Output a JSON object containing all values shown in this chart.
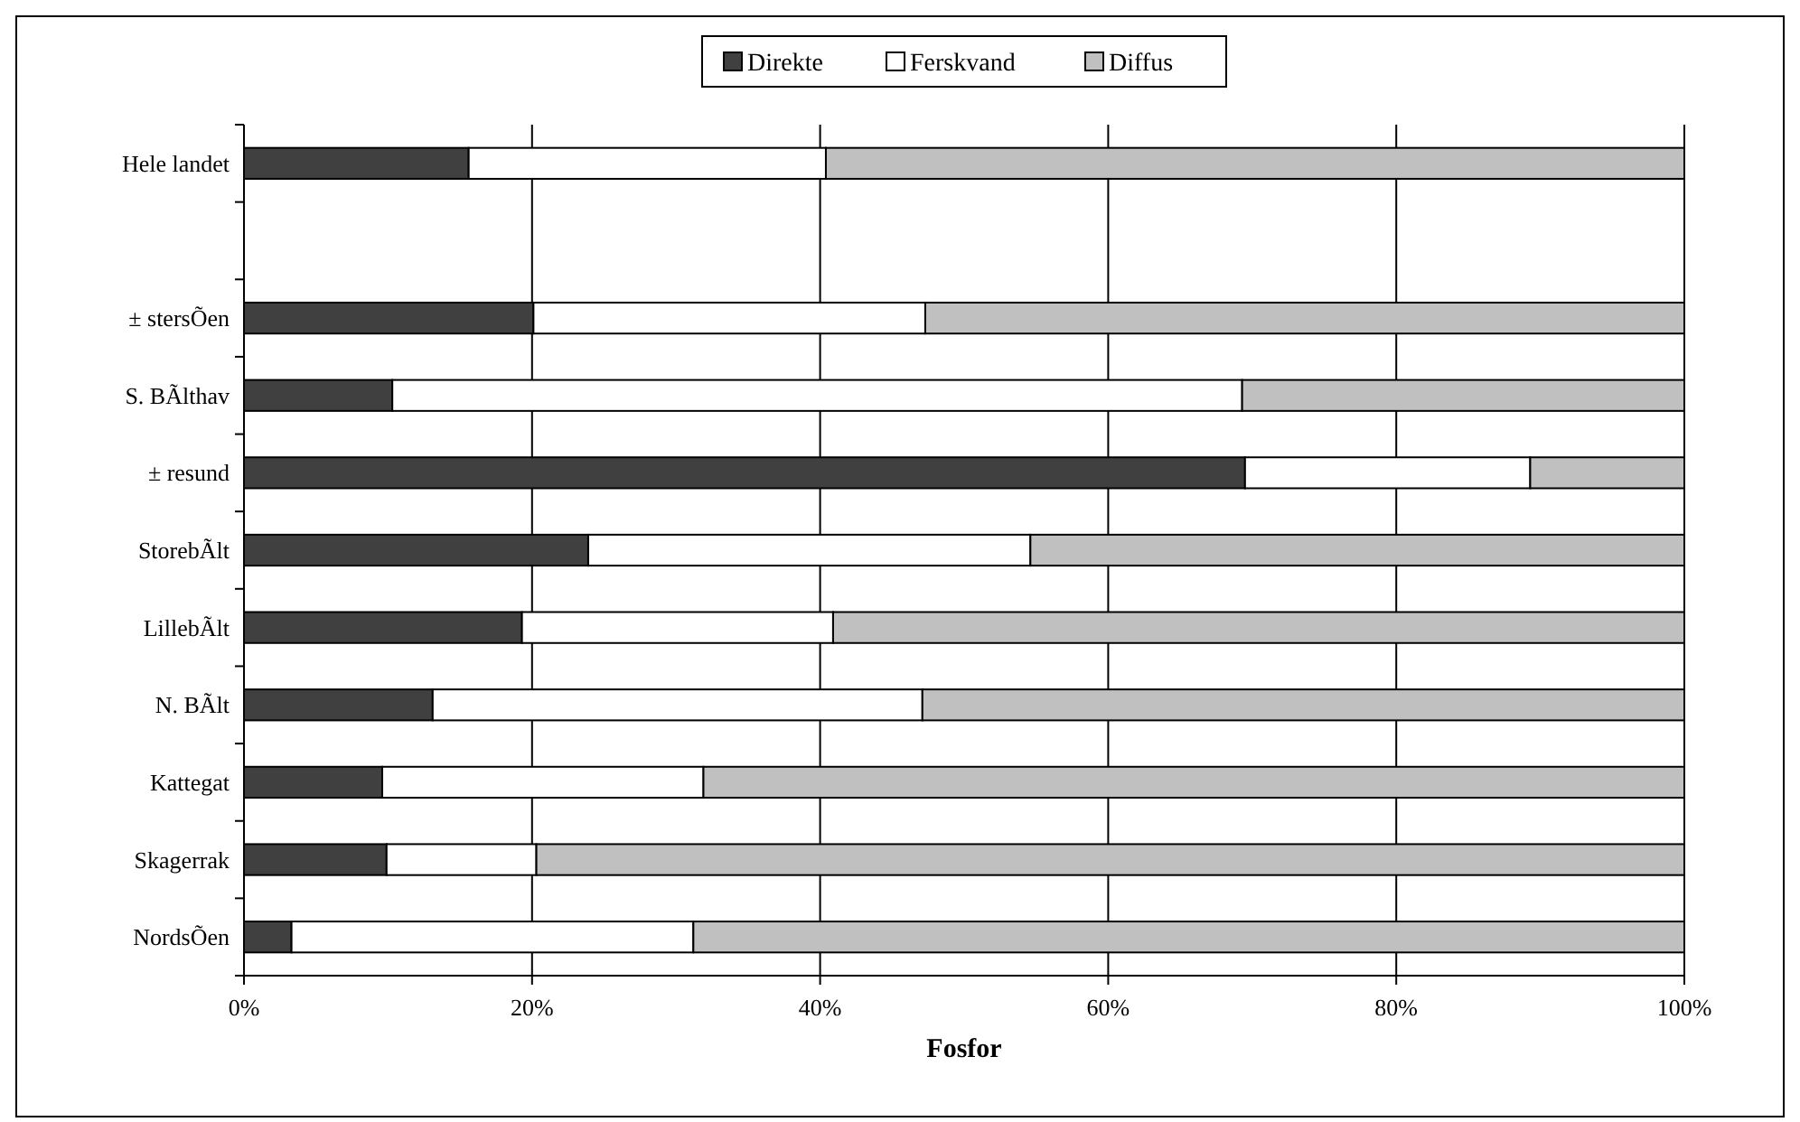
{
  "chart_data": {
    "type": "bar",
    "orientation": "horizontal",
    "stacked": true,
    "xlabel": "Fosfor",
    "categories": [
      "Hele landet",
      null,
      "± stersÕen",
      "S. BÃlthav",
      "± resund",
      "StorebÃlt",
      "LillebÃlt",
      "N. BÃlt",
      "Kattegat",
      "Skagerrak",
      "NordsÕen"
    ],
    "series": [
      {
        "name": "Direkte",
        "color": "#404040",
        "values": [
          15.6,
          null,
          20.1,
          10.3,
          69.5,
          23.9,
          19.3,
          13.1,
          9.6,
          9.9,
          3.3
        ]
      },
      {
        "name": "Ferskvand",
        "color": "#ffffff",
        "values": [
          24.8,
          null,
          27.2,
          59.0,
          19.8,
          30.7,
          21.6,
          34.0,
          22.3,
          10.4,
          27.9
        ]
      },
      {
        "name": "Diffus",
        "color": "#c0c0c0",
        "values": [
          59.6,
          null,
          52.7,
          30.7,
          10.7,
          45.4,
          59.1,
          52.9,
          68.1,
          79.7,
          68.8
        ]
      }
    ],
    "xlim": [
      0,
      100
    ],
    "xticks": [
      {
        "value": 0,
        "label": "0%"
      },
      {
        "value": 20,
        "label": "20%"
      },
      {
        "value": 40,
        "label": "40%"
      },
      {
        "value": 60,
        "label": "60%"
      },
      {
        "value": 80,
        "label": "80%"
      },
      {
        "value": 100,
        "label": "100%"
      }
    ],
    "grid": "x",
    "legend": "top"
  }
}
